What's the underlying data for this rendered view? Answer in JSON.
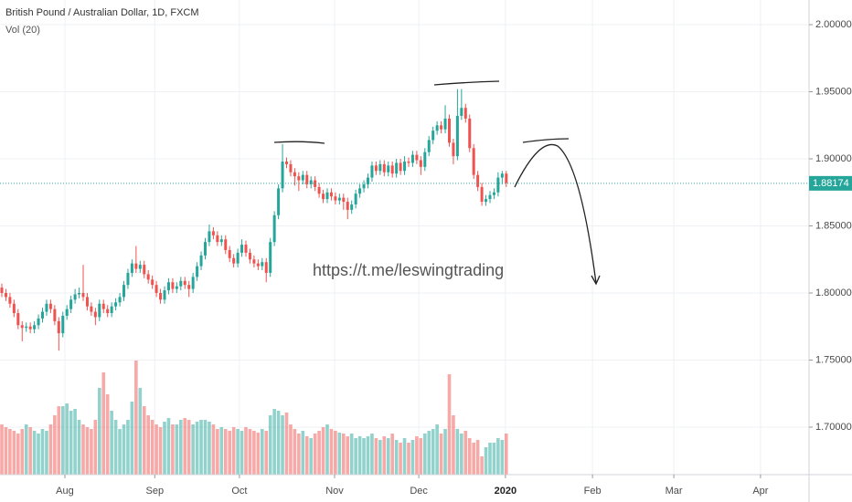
{
  "chart_data": {
    "type": "candlestick",
    "title": "British Pound / Australian Dollar, 1D, FXCM",
    "subtitle": "Vol (20)",
    "annotation": "https://t.me/leswingtrading",
    "up_color": "#26a69a",
    "down_color": "#ef5350",
    "grid": true,
    "xlim": [
      -0.45,
      198.43
    ],
    "ylim": [
      1.6646,
      2.0184
    ],
    "yticks": [
      {
        "value": 1.7,
        "label": "1.70000"
      },
      {
        "value": 1.75,
        "label": "1.75000"
      },
      {
        "value": 1.8,
        "label": "1.80000"
      },
      {
        "value": 1.85,
        "label": "1.85000"
      },
      {
        "value": 1.9,
        "label": "1.90000"
      },
      {
        "value": 1.95,
        "label": "1.95000"
      },
      {
        "value": 2.0,
        "label": "2.00000"
      }
    ],
    "xticks": [
      {
        "value": 15.5,
        "label": "Aug"
      },
      {
        "value": 37.6,
        "label": "Sep"
      },
      {
        "value": 58.4,
        "label": "Oct"
      },
      {
        "value": 81.8,
        "label": "Nov"
      },
      {
        "value": 102.5,
        "label": "Dec"
      },
      {
        "value": 123.8,
        "label": "2020"
      },
      {
        "value": 145.2,
        "label": "Feb"
      },
      {
        "value": 165.2,
        "label": "Mar"
      },
      {
        "value": 186.5,
        "label": "Apr"
      }
    ],
    "last_price": {
      "value": 1.88174,
      "label": "1.88174"
    },
    "open": [
      1.804,
      1.8,
      1.797,
      1.792,
      1.785,
      1.776,
      1.774,
      1.775,
      1.773,
      1.776,
      1.781,
      1.786,
      1.792,
      1.788,
      1.779,
      1.77,
      1.783,
      1.788,
      1.795,
      1.799,
      1.8,
      1.797,
      1.79,
      1.786,
      1.782,
      1.792,
      1.788,
      1.785,
      1.79,
      1.793,
      1.797,
      1.806,
      1.815,
      1.822,
      1.818,
      1.821,
      1.814,
      1.81,
      1.806,
      1.8,
      1.795,
      1.802,
      1.808,
      1.803,
      1.805,
      1.809,
      1.806,
      1.803,
      1.812,
      1.82,
      1.828,
      1.838,
      1.846,
      1.843,
      1.838,
      1.84,
      1.832,
      1.826,
      1.822,
      1.83,
      1.836,
      1.83,
      1.825,
      1.822,
      1.82,
      1.823,
      1.815,
      1.838,
      1.858,
      1.878,
      1.898,
      1.896,
      1.89,
      1.887,
      1.884,
      1.888,
      1.881,
      1.884,
      1.879,
      1.874,
      1.87,
      1.875,
      1.872,
      1.869,
      1.871,
      1.868,
      1.862,
      1.866,
      1.874,
      1.878,
      1.881,
      1.886,
      1.895,
      1.891,
      1.896,
      1.89,
      1.895,
      1.889,
      1.897,
      1.891,
      1.898,
      1.897,
      1.903,
      1.899,
      1.894,
      1.905,
      1.914,
      1.921,
      1.925,
      1.922,
      1.93,
      1.912,
      1.902,
      1.932,
      1.938,
      1.93,
      1.908,
      1.888,
      1.879,
      1.868,
      1.87,
      1.873,
      1.875,
      1.886,
      1.889
    ],
    "high": [
      1.807,
      1.803,
      1.8,
      1.795,
      1.788,
      1.779,
      1.778,
      1.778,
      1.779,
      1.784,
      1.789,
      1.795,
      1.795,
      1.791,
      1.782,
      1.786,
      1.791,
      1.798,
      1.803,
      1.804,
      1.821,
      1.8,
      1.793,
      1.789,
      1.795,
      1.795,
      1.791,
      1.793,
      1.796,
      1.8,
      1.809,
      1.818,
      1.825,
      1.835,
      1.824,
      1.824,
      1.817,
      1.813,
      1.809,
      1.803,
      1.805,
      1.811,
      1.811,
      1.808,
      1.812,
      1.812,
      1.809,
      1.815,
      1.823,
      1.831,
      1.841,
      1.851,
      1.849,
      1.846,
      1.843,
      1.843,
      1.835,
      1.829,
      1.833,
      1.84,
      1.839,
      1.833,
      1.828,
      1.825,
      1.826,
      1.826,
      1.841,
      1.861,
      1.881,
      1.911,
      1.901,
      1.899,
      1.893,
      1.89,
      1.891,
      1.891,
      1.887,
      1.887,
      1.882,
      1.877,
      1.878,
      1.878,
      1.875,
      1.874,
      1.874,
      1.871,
      1.869,
      1.877,
      1.881,
      1.884,
      1.889,
      1.898,
      1.898,
      1.899,
      1.899,
      1.898,
      1.898,
      1.9,
      1.9,
      1.902,
      1.901,
      1.906,
      1.906,
      1.902,
      1.908,
      1.917,
      1.924,
      1.928,
      1.928,
      1.94,
      1.933,
      1.915,
      1.952,
      1.952,
      1.941,
      1.933,
      1.911,
      1.891,
      1.882,
      1.873,
      1.876,
      1.878,
      1.89,
      1.891,
      1.891
    ],
    "low": [
      1.797,
      1.794,
      1.789,
      1.782,
      1.773,
      1.764,
      1.771,
      1.77,
      1.77,
      1.773,
      1.778,
      1.783,
      1.785,
      1.776,
      1.757,
      1.767,
      1.78,
      1.785,
      1.792,
      1.796,
      1.794,
      1.787,
      1.783,
      1.776,
      1.779,
      1.785,
      1.782,
      1.782,
      1.787,
      1.79,
      1.794,
      1.803,
      1.812,
      1.815,
      1.815,
      1.811,
      1.807,
      1.803,
      1.797,
      1.792,
      1.792,
      1.799,
      1.8,
      1.8,
      1.802,
      1.803,
      1.797,
      1.8,
      1.809,
      1.817,
      1.825,
      1.835,
      1.84,
      1.835,
      1.835,
      1.829,
      1.823,
      1.819,
      1.819,
      1.827,
      1.827,
      1.822,
      1.819,
      1.817,
      1.817,
      1.808,
      1.812,
      1.835,
      1.855,
      1.875,
      1.893,
      1.887,
      1.88,
      1.876,
      1.881,
      1.878,
      1.878,
      1.876,
      1.871,
      1.867,
      1.867,
      1.869,
      1.866,
      1.866,
      1.862,
      1.855,
      1.859,
      1.863,
      1.871,
      1.875,
      1.878,
      1.883,
      1.888,
      1.888,
      1.887,
      1.887,
      1.886,
      1.886,
      1.888,
      1.888,
      1.894,
      1.894,
      1.896,
      1.888,
      1.891,
      1.902,
      1.911,
      1.918,
      1.919,
      1.919,
      1.909,
      1.896,
      1.899,
      1.929,
      1.927,
      1.905,
      1.885,
      1.876,
      1.865,
      1.865,
      1.867,
      1.87,
      1.872,
      1.881,
      1.879
    ],
    "close": [
      1.8,
      1.797,
      1.792,
      1.785,
      1.776,
      1.774,
      1.775,
      1.773,
      1.776,
      1.781,
      1.786,
      1.792,
      1.788,
      1.779,
      1.77,
      1.783,
      1.788,
      1.795,
      1.799,
      1.8,
      1.797,
      1.79,
      1.786,
      1.782,
      1.792,
      1.788,
      1.785,
      1.79,
      1.793,
      1.797,
      1.806,
      1.815,
      1.822,
      1.818,
      1.821,
      1.814,
      1.81,
      1.806,
      1.8,
      1.795,
      1.802,
      1.808,
      1.803,
      1.805,
      1.809,
      1.806,
      1.803,
      1.812,
      1.82,
      1.828,
      1.838,
      1.846,
      1.843,
      1.838,
      1.84,
      1.832,
      1.826,
      1.822,
      1.83,
      1.836,
      1.83,
      1.825,
      1.822,
      1.82,
      1.823,
      1.815,
      1.838,
      1.858,
      1.878,
      1.898,
      1.896,
      1.89,
      1.887,
      1.884,
      1.888,
      1.881,
      1.884,
      1.879,
      1.874,
      1.87,
      1.875,
      1.872,
      1.869,
      1.871,
      1.868,
      1.862,
      1.866,
      1.874,
      1.878,
      1.881,
      1.886,
      1.895,
      1.891,
      1.896,
      1.89,
      1.895,
      1.889,
      1.897,
      1.891,
      1.898,
      1.897,
      1.903,
      1.899,
      1.894,
      1.905,
      1.914,
      1.921,
      1.925,
      1.922,
      1.93,
      1.912,
      1.902,
      1.932,
      1.938,
      1.93,
      1.908,
      1.888,
      1.879,
      1.868,
      1.87,
      1.873,
      1.875,
      1.886,
      1.889,
      1.882
    ],
    "volume": [
      55,
      52,
      50,
      48,
      45,
      50,
      55,
      52,
      48,
      45,
      50,
      48,
      55,
      65,
      75,
      75,
      78,
      70,
      72,
      60,
      55,
      52,
      50,
      60,
      95,
      112,
      88,
      70,
      60,
      50,
      55,
      60,
      80,
      125,
      95,
      75,
      65,
      60,
      55,
      52,
      58,
      62,
      55,
      55,
      60,
      62,
      60,
      55,
      58,
      60,
      60,
      58,
      55,
      50,
      52,
      50,
      48,
      52,
      50,
      48,
      52,
      50,
      48,
      46,
      50,
      48,
      65,
      72,
      70,
      65,
      68,
      55,
      50,
      45,
      48,
      42,
      40,
      45,
      48,
      52,
      55,
      50,
      48,
      46,
      45,
      42,
      45,
      40,
      42,
      40,
      42,
      45,
      40,
      38,
      42,
      40,
      45,
      38,
      35,
      40,
      35,
      38,
      42,
      40,
      45,
      48,
      50,
      55,
      45,
      50,
      110,
      65,
      50,
      45,
      48,
      40,
      35,
      38,
      20,
      30,
      35,
      35,
      40,
      38,
      45
    ]
  }
}
